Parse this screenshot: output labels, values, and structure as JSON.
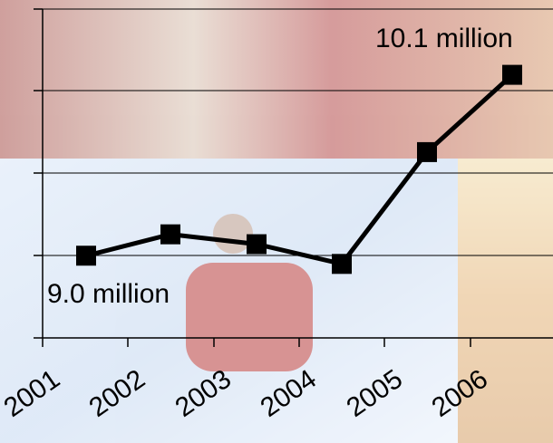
{
  "chart_data": {
    "type": "line",
    "categories": [
      "2001",
      "2002",
      "2003",
      "2004",
      "2005",
      "2006"
    ],
    "series": [
      {
        "values": [
          9.0,
          9.13,
          9.07,
          8.95,
          9.63,
          10.1
        ]
      }
    ],
    "ylim": [
      8.5,
      10.5
    ],
    "grid": true,
    "annotations": {
      "first": "9.0 million",
      "last": "10.1 million"
    },
    "colors": {
      "line": "#000000",
      "marker": "#000000",
      "grid": "#000000"
    }
  }
}
